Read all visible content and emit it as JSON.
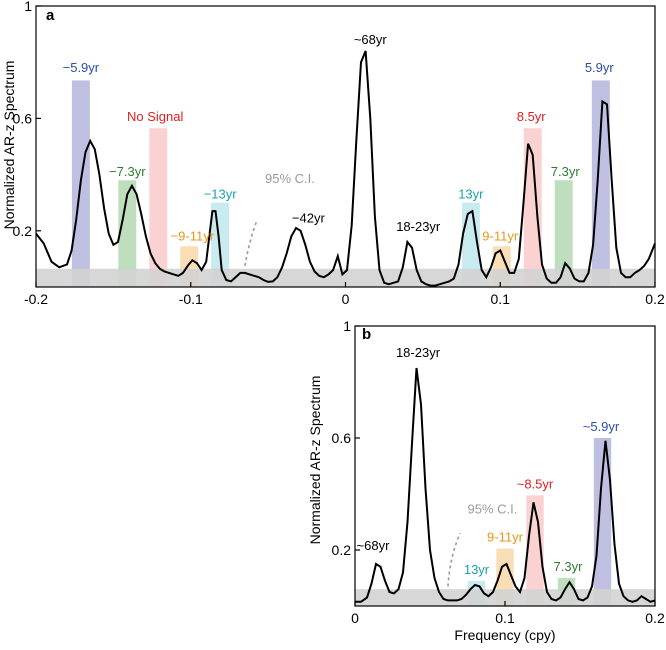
{
  "chart_data": [
    {
      "panel": "a",
      "type": "line",
      "xlim": [
        -0.2,
        0.2
      ],
      "ylim": [
        0,
        1
      ],
      "xticks": [
        -0.2,
        -0.1,
        0,
        0.1,
        0.2
      ],
      "xtick_labels": [
        "-0.2",
        "-0.1",
        "0",
        "0.1",
        "0.2"
      ],
      "yticks": [
        0.2,
        0.6,
        1
      ],
      "ytick_labels": [
        "0.2",
        "0.6",
        "1"
      ],
      "ylabel": "Normalized AR-z Spectrum",
      "xlabel": "",
      "grid": false,
      "ci_level": 0.065,
      "ci_label": "95% C.I.",
      "ci_arrow": [
        [
          -0.065,
          0.075
        ],
        [
          -0.062,
          0.17
        ],
        [
          -0.057,
          0.24
        ]
      ],
      "ci_label_anchor": [
        -0.052,
        0.37
      ],
      "x": [
        -0.2,
        -0.195,
        -0.19,
        -0.185,
        -0.18,
        -0.177,
        -0.174,
        -0.171,
        -0.168,
        -0.165,
        -0.162,
        -0.159,
        -0.156,
        -0.153,
        -0.15,
        -0.147,
        -0.144,
        -0.141,
        -0.138,
        -0.135,
        -0.132,
        -0.129,
        -0.126,
        -0.123,
        -0.12,
        -0.117,
        -0.114,
        -0.111,
        -0.108,
        -0.105,
        -0.102,
        -0.099,
        -0.096,
        -0.093,
        -0.09,
        -0.088,
        -0.086,
        -0.084,
        -0.082,
        -0.08,
        -0.077,
        -0.074,
        -0.071,
        -0.068,
        -0.065,
        -0.062,
        -0.059,
        -0.056,
        -0.053,
        -0.05,
        -0.047,
        -0.044,
        -0.041,
        -0.038,
        -0.035,
        -0.032,
        -0.029,
        -0.026,
        -0.023,
        -0.02,
        -0.017,
        -0.014,
        -0.011,
        -0.008,
        -0.005,
        -0.002,
        0.001,
        0.004,
        0.007,
        0.01,
        0.013,
        0.016,
        0.019,
        0.022,
        0.025,
        0.028,
        0.031,
        0.034,
        0.037,
        0.04,
        0.043,
        0.046,
        0.049,
        0.052,
        0.055,
        0.058,
        0.061,
        0.064,
        0.067,
        0.07,
        0.073,
        0.076,
        0.079,
        0.082,
        0.085,
        0.088,
        0.091,
        0.094,
        0.097,
        0.1,
        0.103,
        0.106,
        0.109,
        0.112,
        0.115,
        0.118,
        0.121,
        0.124,
        0.127,
        0.13,
        0.133,
        0.136,
        0.139,
        0.142,
        0.145,
        0.148,
        0.151,
        0.154,
        0.157,
        0.16,
        0.163,
        0.166,
        0.169,
        0.172,
        0.175,
        0.178,
        0.181,
        0.184,
        0.187,
        0.19,
        0.193,
        0.196,
        0.2
      ],
      "y": [
        0.19,
        0.155,
        0.09,
        0.07,
        0.08,
        0.13,
        0.24,
        0.38,
        0.48,
        0.52,
        0.49,
        0.4,
        0.28,
        0.19,
        0.15,
        0.16,
        0.24,
        0.33,
        0.36,
        0.33,
        0.26,
        0.18,
        0.12,
        0.085,
        0.065,
        0.055,
        0.05,
        0.045,
        0.04,
        0.05,
        0.075,
        0.095,
        0.085,
        0.06,
        0.09,
        0.18,
        0.27,
        0.27,
        0.18,
        0.06,
        0.025,
        0.02,
        0.035,
        0.05,
        0.05,
        0.045,
        0.04,
        0.035,
        0.025,
        0.018,
        0.02,
        0.035,
        0.07,
        0.12,
        0.18,
        0.21,
        0.2,
        0.15,
        0.09,
        0.055,
        0.04,
        0.035,
        0.045,
        0.06,
        0.11,
        0.045,
        0.06,
        0.22,
        0.52,
        0.8,
        0.84,
        0.6,
        0.25,
        0.06,
        0.015,
        0.01,
        0.015,
        0.02,
        0.07,
        0.16,
        0.14,
        0.06,
        0.02,
        0.01,
        0.005,
        0.005,
        0.01,
        0.015,
        0.02,
        0.03,
        0.08,
        0.19,
        0.26,
        0.27,
        0.16,
        0.06,
        0.035,
        0.07,
        0.12,
        0.13,
        0.09,
        0.05,
        0.05,
        0.1,
        0.3,
        0.51,
        0.47,
        0.25,
        0.08,
        0.03,
        0.015,
        0.015,
        0.035,
        0.085,
        0.065,
        0.03,
        0.02,
        0.02,
        0.05,
        0.15,
        0.38,
        0.66,
        0.65,
        0.38,
        0.14,
        0.05,
        0.035,
        0.035,
        0.05,
        0.06,
        0.075,
        0.1,
        0.155
      ],
      "bands": [
        {
          "center": -0.171,
          "height": 0.735,
          "color": "#7f7fc4",
          "opacity": 0.5
        },
        {
          "center": -0.141,
          "height": 0.38,
          "color": "#88c288",
          "opacity": 0.55
        },
        {
          "center": -0.121,
          "height": 0.565,
          "color": "#f7a6a6",
          "opacity": 0.5
        },
        {
          "center": -0.101,
          "height": 0.145,
          "color": "#f5c27a",
          "opacity": 0.55
        },
        {
          "center": -0.081,
          "height": 0.3,
          "color": "#8fd8e0",
          "opacity": 0.5
        },
        {
          "center": 0.081,
          "height": 0.3,
          "color": "#8fd8e0",
          "opacity": 0.5
        },
        {
          "center": 0.101,
          "height": 0.145,
          "color": "#f5c27a",
          "opacity": 0.55
        },
        {
          "center": 0.121,
          "height": 0.565,
          "color": "#f7a6a6",
          "opacity": 0.5
        },
        {
          "center": 0.141,
          "height": 0.38,
          "color": "#88c288",
          "opacity": 0.55
        },
        {
          "center": 0.165,
          "height": 0.735,
          "color": "#7f7fc4",
          "opacity": 0.5
        }
      ],
      "annotations": [
        {
          "text": "−5.9yr",
          "x": -0.171,
          "y": 0.765,
          "color": "#2a4fa8",
          "anchor": "middle"
        },
        {
          "text": "No Signal",
          "x": -0.123,
          "y": 0.59,
          "color": "#e02020",
          "anchor": "middle"
        },
        {
          "text": "−7.3yr",
          "x": -0.141,
          "y": 0.395,
          "color": "#2e7d2e",
          "anchor": "middle"
        },
        {
          "text": "−13yr",
          "x": -0.081,
          "y": 0.315,
          "color": "#1aa3a8",
          "anchor": "middle"
        },
        {
          "text": "−9-11yr",
          "x": -0.099,
          "y": 0.165,
          "color": "#e8961a",
          "anchor": "middle"
        },
        {
          "text": "−42yr",
          "x": -0.024,
          "y": 0.23,
          "color": "#000000",
          "anchor": "middle"
        },
        {
          "text": "~68yr",
          "x": 0.016,
          "y": 0.865,
          "color": "#000000",
          "anchor": "middle"
        },
        {
          "text": "18-23yr",
          "x": 0.047,
          "y": 0.2,
          "color": "#000000",
          "anchor": "middle"
        },
        {
          "text": "13yr",
          "x": 0.081,
          "y": 0.315,
          "color": "#1aa3a8",
          "anchor": "middle"
        },
        {
          "text": "9-11yr",
          "x": 0.1,
          "y": 0.165,
          "color": "#e8961a",
          "anchor": "middle"
        },
        {
          "text": "8.5yr",
          "x": 0.12,
          "y": 0.59,
          "color": "#e02020",
          "anchor": "middle"
        },
        {
          "text": "7.3yr",
          "x": 0.142,
          "y": 0.395,
          "color": "#2e7d2e",
          "anchor": "middle"
        },
        {
          "text": "5.9yr",
          "x": 0.164,
          "y": 0.765,
          "color": "#2a4fa8",
          "anchor": "middle"
        }
      ]
    },
    {
      "panel": "b",
      "type": "line",
      "xlim": [
        0,
        0.2
      ],
      "ylim": [
        0,
        1
      ],
      "xticks": [
        0,
        0.1,
        0.2
      ],
      "xtick_labels": [
        "0",
        "0.1",
        "0.2"
      ],
      "yticks": [
        0.2,
        0.6,
        1
      ],
      "ytick_labels": [
        "0.2",
        "0.6",
        "1"
      ],
      "ylabel": "Normalized AR-z Spectrum",
      "xlabel": "Frequency (cpy)",
      "grid": false,
      "ci_level": 0.06,
      "ci_label": "95% C.I.",
      "ci_arrow": [
        [
          0.062,
          0.07
        ],
        [
          0.063,
          0.17
        ],
        [
          0.07,
          0.26
        ]
      ],
      "ci_label_anchor": [
        0.075,
        0.33
      ],
      "x": [
        0,
        0.004,
        0.008,
        0.011,
        0.014,
        0.017,
        0.02,
        0.023,
        0.026,
        0.029,
        0.032,
        0.035,
        0.038,
        0.041,
        0.044,
        0.047,
        0.05,
        0.053,
        0.056,
        0.059,
        0.062,
        0.065,
        0.068,
        0.071,
        0.074,
        0.077,
        0.08,
        0.083,
        0.086,
        0.089,
        0.092,
        0.095,
        0.098,
        0.101,
        0.104,
        0.107,
        0.11,
        0.113,
        0.116,
        0.119,
        0.122,
        0.125,
        0.128,
        0.131,
        0.134,
        0.137,
        0.14,
        0.143,
        0.146,
        0.149,
        0.152,
        0.155,
        0.158,
        0.161,
        0.164,
        0.167,
        0.17,
        0.173,
        0.176,
        0.179,
        0.182,
        0.185,
        0.188,
        0.191,
        0.194,
        0.197,
        0.2
      ],
      "y": [
        0.015,
        0.015,
        0.03,
        0.08,
        0.15,
        0.14,
        0.09,
        0.05,
        0.045,
        0.06,
        0.12,
        0.3,
        0.58,
        0.85,
        0.72,
        0.42,
        0.2,
        0.1,
        0.05,
        0.025,
        0.02,
        0.02,
        0.02,
        0.025,
        0.04,
        0.06,
        0.075,
        0.07,
        0.045,
        0.035,
        0.05,
        0.09,
        0.14,
        0.15,
        0.11,
        0.07,
        0.05,
        0.1,
        0.25,
        0.37,
        0.3,
        0.14,
        0.05,
        0.025,
        0.02,
        0.03,
        0.06,
        0.085,
        0.06,
        0.025,
        0.02,
        0.03,
        0.07,
        0.18,
        0.42,
        0.59,
        0.45,
        0.22,
        0.08,
        0.035,
        0.02,
        0.015,
        0.02,
        0.035,
        0.025,
        0.015,
        0.02
      ],
      "bands": [
        {
          "center": 0.081,
          "height": 0.09,
          "color": "#8fd8e0",
          "opacity": 0.5
        },
        {
          "center": 0.1,
          "height": 0.205,
          "color": "#f5c27a",
          "opacity": 0.55
        },
        {
          "center": 0.12,
          "height": 0.395,
          "color": "#f7a6a6",
          "opacity": 0.5
        },
        {
          "center": 0.141,
          "height": 0.1,
          "color": "#88c288",
          "opacity": 0.55
        },
        {
          "center": 0.165,
          "height": 0.6,
          "color": "#7f7fc4",
          "opacity": 0.5
        }
      ],
      "annotations": [
        {
          "text": "~68yr",
          "x": 0.012,
          "y": 0.2,
          "color": "#000000",
          "anchor": "middle"
        },
        {
          "text": "18-23yr",
          "x": 0.042,
          "y": 0.89,
          "color": "#000000",
          "anchor": "middle"
        },
        {
          "text": "13yr",
          "x": 0.081,
          "y": 0.115,
          "color": "#1aa3a8",
          "anchor": "middle"
        },
        {
          "text": "9-11yr",
          "x": 0.1,
          "y": 0.23,
          "color": "#e8961a",
          "anchor": "middle"
        },
        {
          "text": "~8.5yr",
          "x": 0.12,
          "y": 0.42,
          "color": "#e02020",
          "anchor": "middle"
        },
        {
          "text": "7.3yr",
          "x": 0.142,
          "y": 0.125,
          "color": "#2e7d2e",
          "anchor": "middle"
        },
        {
          "text": "~5.9yr",
          "x": 0.164,
          "y": 0.625,
          "color": "#2a4fa8",
          "anchor": "middle"
        }
      ]
    }
  ],
  "panels": [
    {
      "letter": "a",
      "ylabel": "Normalized AR-z Spectrum",
      "ci_label": "95% C.I."
    },
    {
      "letter": "b",
      "ylabel": "Normalized AR-z Spectrum",
      "ci_label": "95% C.I.",
      "xlabel": "Frequency (cpy)"
    }
  ]
}
